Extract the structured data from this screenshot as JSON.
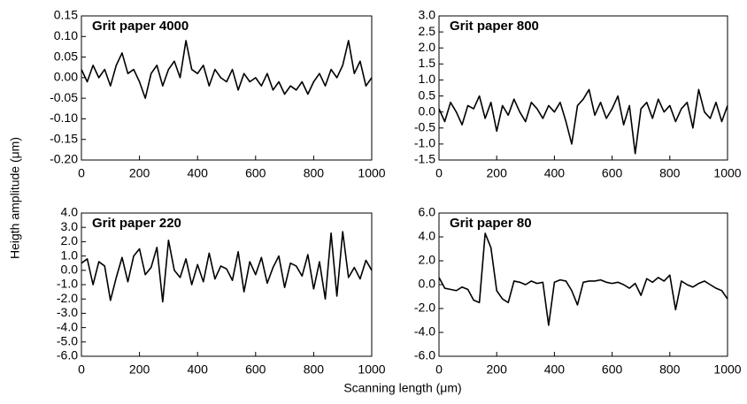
{
  "ylabel": "Heigth amplitude (μm)",
  "xlabel": "Scanning length (μm)",
  "chart_data": [
    {
      "type": "line",
      "title": "Grit paper 4000",
      "color": "#000000",
      "x": [
        0,
        20,
        40,
        60,
        80,
        100,
        120,
        140,
        160,
        180,
        200,
        220,
        240,
        260,
        280,
        300,
        320,
        340,
        360,
        380,
        400,
        420,
        440,
        460,
        480,
        500,
        520,
        540,
        560,
        580,
        600,
        620,
        640,
        660,
        680,
        700,
        720,
        740,
        760,
        780,
        800,
        820,
        840,
        860,
        880,
        900,
        920,
        940,
        960,
        980,
        1000
      ],
      "values": [
        0.02,
        -0.01,
        0.03,
        0.0,
        0.02,
        -0.02,
        0.03,
        0.06,
        0.01,
        0.02,
        -0.01,
        -0.05,
        0.01,
        0.03,
        -0.02,
        0.02,
        0.04,
        0.0,
        0.09,
        0.02,
        0.01,
        0.03,
        -0.02,
        0.02,
        0.0,
        -0.01,
        0.02,
        -0.03,
        0.01,
        -0.01,
        0.0,
        -0.02,
        0.01,
        -0.03,
        -0.01,
        -0.04,
        -0.02,
        -0.03,
        -0.01,
        -0.04,
        -0.01,
        0.01,
        -0.02,
        0.02,
        0.0,
        0.03,
        0.09,
        0.01,
        0.04,
        -0.02,
        0.0
      ],
      "xlim": [
        0,
        1000
      ],
      "xticks": [
        0,
        200,
        400,
        600,
        800,
        1000
      ],
      "ylim": [
        -0.2,
        0.15
      ],
      "yticks": [
        0.15,
        {
          "value": 0.1,
          "label": "0.10"
        },
        0.05,
        {
          "value": 0,
          "label": "0.00"
        },
        -0.05,
        {
          "value": -0.1,
          "label": "-0.10"
        },
        -0.15,
        {
          "value": -0.2,
          "label": "-0.20"
        }
      ]
    },
    {
      "type": "line",
      "title": "Grit paper 800",
      "color": "#000000",
      "x": [
        0,
        20,
        40,
        60,
        80,
        100,
        120,
        140,
        160,
        180,
        200,
        220,
        240,
        260,
        280,
        300,
        320,
        340,
        360,
        380,
        400,
        420,
        440,
        460,
        480,
        500,
        520,
        540,
        560,
        580,
        600,
        620,
        640,
        660,
        680,
        700,
        720,
        740,
        760,
        780,
        800,
        820,
        840,
        860,
        880,
        900,
        920,
        940,
        960,
        980,
        1000
      ],
      "values": [
        0.1,
        -0.3,
        0.3,
        0.0,
        -0.4,
        0.2,
        0.1,
        0.5,
        -0.2,
        0.3,
        -0.6,
        0.2,
        -0.1,
        0.4,
        0.0,
        -0.3,
        0.3,
        0.1,
        -0.2,
        0.2,
        0.0,
        0.3,
        -0.3,
        -1.0,
        0.2,
        0.4,
        0.7,
        -0.1,
        0.3,
        -0.2,
        0.1,
        0.5,
        -0.4,
        0.2,
        -1.3,
        0.1,
        0.3,
        -0.2,
        0.4,
        0.0,
        0.2,
        -0.3,
        0.1,
        0.3,
        -0.5,
        0.7,
        0.0,
        -0.2,
        0.3,
        -0.3,
        0.2
      ],
      "xlim": [
        0,
        1000
      ],
      "xticks": [
        0,
        200,
        400,
        600,
        800,
        1000
      ],
      "ylim": [
        -1.5,
        3
      ],
      "yticks": [
        {
          "value": 3,
          "label": "3.0"
        },
        2.5,
        {
          "value": 2,
          "label": "2.0"
        },
        1.5,
        {
          "value": 1,
          "label": "1.0"
        },
        0.5,
        {
          "value": 0,
          "label": "0.0"
        },
        -0.5,
        {
          "value": -1,
          "label": "-1.0"
        },
        -1.5
      ]
    },
    {
      "type": "line",
      "title": "Grit paper 220",
      "color": "#000000",
      "x": [
        0,
        20,
        40,
        60,
        80,
        100,
        120,
        140,
        160,
        180,
        200,
        220,
        240,
        260,
        280,
        300,
        320,
        340,
        360,
        380,
        400,
        420,
        440,
        460,
        480,
        500,
        520,
        540,
        560,
        580,
        600,
        620,
        640,
        660,
        680,
        700,
        720,
        740,
        760,
        780,
        800,
        820,
        840,
        860,
        880,
        900,
        920,
        940,
        960,
        980,
        1000
      ],
      "values": [
        0.5,
        0.8,
        -1.0,
        0.6,
        0.3,
        -2.1,
        -0.5,
        0.9,
        -0.8,
        1.0,
        1.5,
        -0.3,
        0.2,
        1.6,
        -2.2,
        2.1,
        0.0,
        -0.5,
        0.8,
        -1.0,
        0.4,
        -0.8,
        1.2,
        -0.6,
        0.3,
        0.1,
        -0.7,
        1.3,
        -1.5,
        0.6,
        -0.3,
        0.9,
        -0.9,
        0.2,
        1.0,
        -1.2,
        0.5,
        0.3,
        -0.4,
        1.1,
        -1.3,
        0.6,
        -2.0,
        2.6,
        -1.8,
        2.7,
        -0.5,
        0.2,
        -0.6,
        0.7,
        0.0
      ],
      "xlim": [
        0,
        1000
      ],
      "xticks": [
        0,
        200,
        400,
        600,
        800,
        1000
      ],
      "ylim": [
        -6,
        4
      ],
      "yticks": [
        {
          "value": 4,
          "label": "4.0"
        },
        {
          "value": 3,
          "label": "3.0"
        },
        {
          "value": 2,
          "label": "2.0"
        },
        {
          "value": 1,
          "label": "1.0"
        },
        {
          "value": 0,
          "label": "0.0"
        },
        {
          "value": -1,
          "label": "-1.0"
        },
        {
          "value": -2,
          "label": "-2.0"
        },
        {
          "value": -3,
          "label": "-3.0"
        },
        {
          "value": -4,
          "label": "-4.0"
        },
        {
          "value": -5,
          "label": "-5.0"
        },
        {
          "value": -6,
          "label": "-6.0"
        }
      ]
    },
    {
      "type": "line",
      "title": "Grit paper 80",
      "color": "#000000",
      "x": [
        0,
        20,
        40,
        60,
        80,
        100,
        120,
        140,
        160,
        180,
        200,
        220,
        240,
        260,
        280,
        300,
        320,
        340,
        360,
        380,
        400,
        420,
        440,
        460,
        480,
        500,
        520,
        540,
        560,
        580,
        600,
        620,
        640,
        660,
        680,
        700,
        720,
        740,
        760,
        780,
        800,
        820,
        840,
        860,
        880,
        900,
        920,
        940,
        960,
        980,
        1000
      ],
      "values": [
        0.6,
        -0.3,
        -0.4,
        -0.5,
        -0.2,
        -0.4,
        -1.3,
        -1.5,
        4.3,
        3.1,
        -0.5,
        -1.2,
        -1.5,
        0.3,
        0.2,
        0.0,
        0.3,
        0.1,
        0.2,
        -3.4,
        0.2,
        0.4,
        0.3,
        -0.5,
        -1.7,
        0.2,
        0.3,
        0.3,
        0.4,
        0.2,
        0.1,
        0.2,
        0.0,
        -0.3,
        0.1,
        -0.9,
        0.5,
        0.2,
        0.6,
        0.3,
        0.8,
        -2.1,
        0.3,
        0.0,
        -0.2,
        0.1,
        0.3,
        0.0,
        -0.3,
        -0.5,
        -1.2
      ],
      "xlim": [
        0,
        1000
      ],
      "xticks": [
        0,
        200,
        400,
        600,
        800,
        1000
      ],
      "ylim": [
        -6,
        6
      ],
      "yticks": [
        {
          "value": 6,
          "label": "6.0"
        },
        {
          "value": 4,
          "label": "4.0"
        },
        {
          "value": 2,
          "label": "2.0"
        },
        {
          "value": 0,
          "label": "0.0"
        },
        {
          "value": -2,
          "label": "-2.0"
        },
        {
          "value": -4,
          "label": "-4.0"
        },
        {
          "value": -6,
          "label": "-6.0"
        }
      ]
    }
  ]
}
